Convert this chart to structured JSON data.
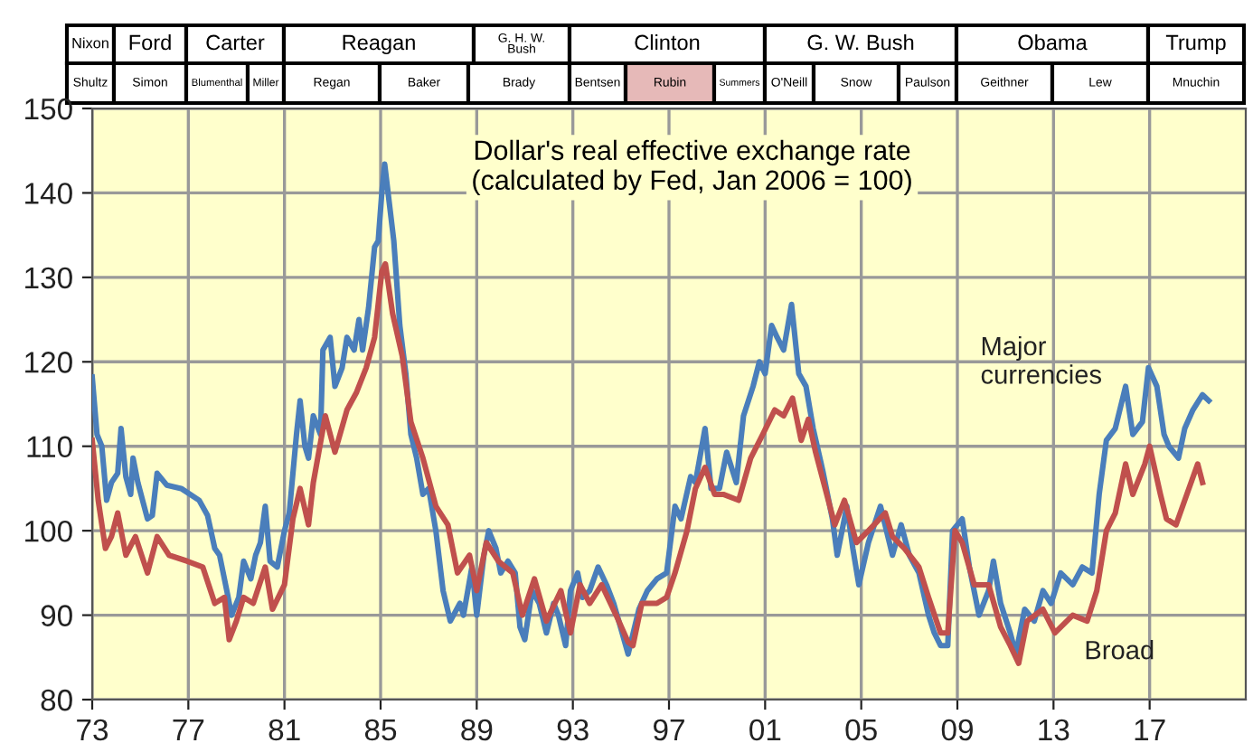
{
  "chart_data": [
    {
      "type": "other",
      "annotations": [
        "Nixon",
        "Ford",
        "Carter",
        "Reagan",
        "G. H. W.\nBush",
        "Clinton",
        "G. W. Bush",
        "Obama",
        "Trump",
        "Shultz",
        "Simon",
        "Blumenthal",
        "Miller",
        "Regan",
        "Baker",
        "Brady",
        "Bentsen",
        "Rubin",
        "Summers",
        "O'Neill",
        "Snow",
        "Paulson",
        "Geithner",
        "Lew",
        "Mnuchin"
      ],
      "colors": [
        "#ffffff",
        "#ffffff",
        "#ffffff",
        "#ffffff",
        "#ffffff",
        "#ffffff",
        "#ffffff",
        "#ffffff",
        "#ffffff",
        "#ffffff",
        "#ffffff",
        "#ffffff",
        "#ffffff",
        "#ffffff",
        "#ffffff",
        "#ffffff",
        "#ffffff",
        "#e6b9b8",
        "#ffffff",
        "#ffffff",
        "#ffffff",
        "#ffffff",
        "#ffffff",
        "#ffffff",
        "#ffffff"
      ]
    },
    {
      "type": "line",
      "title": "Dollar's real effective exchange rate\n(calculated by Fed, Jan 2006 = 100)",
      "xlim": [
        1973,
        2021
      ],
      "ylim": [
        80,
        150
      ],
      "xticks": [
        {
          "value": 1973,
          "label": "73"
        },
        {
          "value": 1977,
          "label": "77"
        },
        {
          "value": 1981,
          "label": "81"
        },
        {
          "value": 1985,
          "label": "85"
        },
        {
          "value": 1989,
          "label": "89"
        },
        {
          "value": 1993,
          "label": "93"
        },
        {
          "value": 1997,
          "label": "97"
        },
        {
          "value": 2001,
          "label": "01"
        },
        {
          "value": 2005,
          "label": "05"
        },
        {
          "value": 2009,
          "label": "09"
        },
        {
          "value": 2013,
          "label": "13"
        },
        {
          "value": 2017,
          "label": "17"
        }
      ],
      "yticks": [
        80,
        90,
        100,
        110,
        120,
        130,
        140,
        150
      ],
      "grid": true,
      "legend": false,
      "marker": "none",
      "line_style": "solid",
      "series": [
        {
          "name": "Major\ncurrencies",
          "color": "#4a7ebb",
          "x": [
            1973.0,
            1973.2,
            1973.4,
            1973.6,
            1973.8,
            1974.06,
            1974.2,
            1974.4,
            1974.6,
            1974.7,
            1974.9,
            1975.3,
            1975.5,
            1975.7,
            1976.1,
            1976.7,
            1977.45,
            1977.8,
            1978.1,
            1978.3,
            1978.6,
            1978.8,
            1979.1,
            1979.3,
            1979.6,
            1979.8,
            1980.0,
            1980.2,
            1980.4,
            1980.7,
            1981.0,
            1981.2,
            1981.5,
            1981.65,
            1981.85,
            1982.0,
            1982.2,
            1982.5,
            1982.6,
            1982.9,
            1983.1,
            1983.4,
            1983.6,
            1983.9,
            1984.1,
            1984.25,
            1984.5,
            1984.75,
            1984.9,
            1985.05,
            1985.17,
            1985.4,
            1985.55,
            1985.8,
            1986.05,
            1986.26,
            1986.5,
            1986.76,
            1987.0,
            1987.3,
            1987.6,
            1987.9,
            1988.3,
            1988.45,
            1988.8,
            1989.0,
            1989.3,
            1989.5,
            1989.8,
            1990.0,
            1990.3,
            1990.6,
            1990.8,
            1991.0,
            1991.3,
            1991.6,
            1991.9,
            1992.2,
            1992.4,
            1992.7,
            1992.9,
            1993.2,
            1993.4,
            1993.7,
            1994.05,
            1994.4,
            1994.7,
            1995.05,
            1995.3,
            1995.75,
            1996.1,
            1996.5,
            1996.9,
            1997.25,
            1997.5,
            1997.9,
            1998.1,
            1998.5,
            1998.75,
            1999.1,
            1999.4,
            1999.8,
            2000.1,
            2000.5,
            2000.76,
            2001.0,
            2001.27,
            2001.5,
            2001.77,
            2002.1,
            2002.4,
            2002.7,
            2003.0,
            2003.4,
            2003.8,
            2004.0,
            2004.4,
            2004.65,
            2004.9,
            2005.3,
            2005.8,
            2006.3,
            2006.66,
            2007.0,
            2007.4,
            2007.8,
            2008.04,
            2008.3,
            2008.6,
            2008.8,
            2009.2,
            2009.5,
            2009.9,
            2010.3,
            2010.5,
            2010.8,
            2011.2,
            2011.43,
            2011.8,
            2012.2,
            2012.56,
            2012.9,
            2013.3,
            2013.8,
            2014.2,
            2014.6,
            2014.9,
            2015.2,
            2015.57,
            2016.0,
            2016.3,
            2016.7,
            2016.95,
            2017.3,
            2017.6,
            2017.8,
            2018.2,
            2018.46,
            2018.8,
            2019.2,
            2019.46
          ],
          "values": [
            118.2,
            111.4,
            110,
            103.6,
            105.7,
            106.8,
            112.1,
            106.4,
            104.3,
            108.6,
            105.7,
            101.4,
            101.8,
            106.8,
            105.4,
            105,
            103.6,
            101.8,
            97.9,
            97.1,
            92.9,
            90,
            92.1,
            96.4,
            94.3,
            97.1,
            98.6,
            102.9,
            96.4,
            95.7,
            100,
            102.1,
            111.4,
            115.4,
            110,
            108.6,
            113.6,
            111.4,
            121.4,
            122.9,
            117.1,
            119.3,
            122.9,
            121.4,
            125,
            121.4,
            126.4,
            133.6,
            134.3,
            140,
            143.4,
            137.9,
            134.3,
            124.3,
            118.6,
            111.4,
            108.6,
            104.3,
            105,
            100,
            92.9,
            89.3,
            91.4,
            90,
            95.7,
            90,
            97.1,
            100,
            97.9,
            95,
            96.4,
            95,
            88.6,
            87.1,
            92.9,
            91.4,
            87.9,
            91.4,
            90,
            86.4,
            92.9,
            95,
            92.1,
            92.9,
            95.7,
            93.6,
            91.4,
            87.9,
            85.4,
            90.7,
            92.9,
            94.3,
            95,
            102.9,
            101.4,
            106.4,
            105.7,
            112.1,
            105,
            105,
            109.3,
            105.7,
            113.6,
            117.1,
            120,
            118.6,
            124.3,
            122.9,
            121.4,
            126.8,
            118.6,
            117.1,
            112.1,
            107.1,
            101.4,
            97.1,
            102.9,
            97.9,
            93.6,
            98.6,
            102.9,
            97.1,
            100.7,
            97.1,
            95,
            90,
            87.9,
            86.4,
            86.4,
            100,
            101.4,
            95.7,
            90,
            92.9,
            96.4,
            91.4,
            87.9,
            85.4,
            90.7,
            89.3,
            92.9,
            91.4,
            95,
            93.6,
            95.7,
            95,
            104.3,
            110.7,
            112.1,
            117.1,
            111.4,
            112.9,
            119.3,
            117.1,
            111.4,
            110,
            108.6,
            112.1,
            114.3,
            116.1,
            115.4
          ]
        },
        {
          "name": "Broad",
          "color": "#c0504d",
          "x": [
            1973.0,
            1973.25,
            1973.55,
            1973.8,
            1974.06,
            1974.4,
            1974.8,
            1975.3,
            1975.7,
            1976.2,
            1976.95,
            1977.6,
            1978.1,
            1978.5,
            1978.7,
            1979.0,
            1979.3,
            1979.7,
            1980.2,
            1980.5,
            1981.0,
            1981.35,
            1981.65,
            1982.0,
            1982.2,
            1982.7,
            1983.1,
            1983.6,
            1984.0,
            1984.4,
            1984.75,
            1985.05,
            1985.2,
            1985.5,
            1985.9,
            1986.26,
            1986.76,
            1987.3,
            1987.8,
            1988.2,
            1988.7,
            1989.0,
            1989.4,
            1989.9,
            1990.5,
            1990.9,
            1991.4,
            1991.9,
            1992.5,
            1992.9,
            1993.3,
            1993.7,
            1994.2,
            1994.8,
            1995.3,
            1995.5,
            1995.87,
            1996.5,
            1996.9,
            1997.25,
            1997.75,
            1998.1,
            1998.5,
            1998.9,
            1999.26,
            1999.9,
            2000.4,
            2000.9,
            2001.4,
            2001.77,
            2002.14,
            2002.5,
            2002.8,
            2003.1,
            2003.5,
            2003.9,
            2004.3,
            2004.8,
            2005.3,
            2006.0,
            2006.3,
            2006.8,
            2007.4,
            2007.8,
            2008.3,
            2008.6,
            2008.9,
            2009.2,
            2009.7,
            2010.3,
            2010.8,
            2011.2,
            2011.55,
            2011.9,
            2012.56,
            2013.06,
            2013.8,
            2014.4,
            2014.8,
            2015.2,
            2015.57,
            2016.0,
            2016.3,
            2016.8,
            2017.0,
            2017.45,
            2017.7,
            2018.1,
            2018.46,
            2019.0,
            2019.2
          ],
          "values": [
            110.7,
            103.6,
            97.9,
            99.3,
            102.1,
            97.1,
            99.3,
            95,
            99.3,
            97.1,
            96.4,
            95.7,
            91.4,
            92.1,
            87.1,
            89.3,
            92.1,
            91.4,
            95.7,
            90.7,
            93.6,
            101.4,
            105,
            100.7,
            105.7,
            113.6,
            109.3,
            114.3,
            116.4,
            119.3,
            122.9,
            130.7,
            131.6,
            125.7,
            120.7,
            112.9,
            108.6,
            102.9,
            100.7,
            95,
            97.1,
            92.9,
            98.6,
            96.4,
            95,
            90,
            94.3,
            89.3,
            92.9,
            87.9,
            93.6,
            91.4,
            93.6,
            90,
            86.8,
            86.4,
            91.4,
            91.4,
            92.1,
            95,
            100,
            105,
            107.5,
            104.3,
            104.3,
            103.6,
            108.6,
            111.4,
            114.3,
            113.6,
            115.7,
            110.7,
            113.2,
            109.3,
            105,
            100.7,
            103.6,
            98.6,
            100,
            102.1,
            99.3,
            97.9,
            95.7,
            92.1,
            87.9,
            87.9,
            100,
            98.6,
            93.6,
            93.6,
            88.6,
            86.4,
            84.3,
            89.3,
            90.7,
            87.9,
            90,
            89.3,
            92.9,
            100,
            102.1,
            107.9,
            104.3,
            107.9,
            110,
            104.3,
            101.4,
            100.7,
            103.6,
            107.9,
            105.7
          ]
        }
      ]
    }
  ]
}
